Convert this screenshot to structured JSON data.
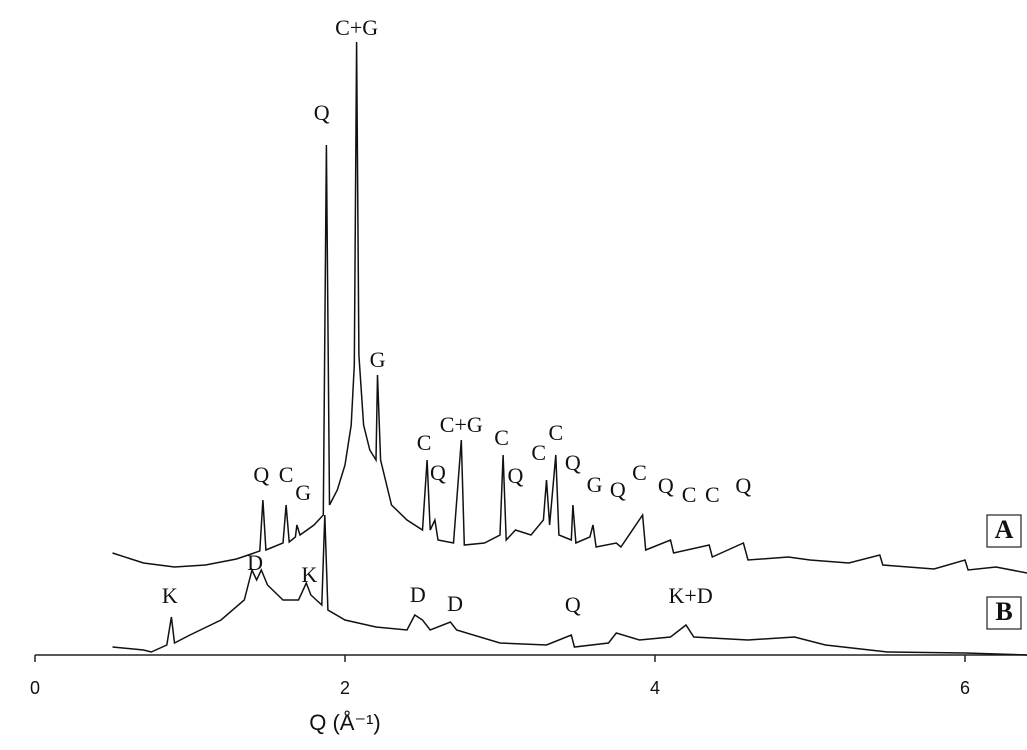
{
  "chart_data": {
    "type": "line",
    "x_label": "Q (Å⁻¹)",
    "xlim": [
      0,
      6.4
    ],
    "xticks": [
      0,
      2,
      4,
      6
    ],
    "ylim": [
      0,
      640
    ],
    "series": [
      {
        "name": "A",
        "color": "#111111",
        "x": [
          0.5,
          0.7,
          0.9,
          1.1,
          1.3,
          1.45,
          1.47,
          1.49,
          1.6,
          1.62,
          1.64,
          1.68,
          1.69,
          1.71,
          1.8,
          1.86,
          1.88,
          1.9,
          1.95,
          2.0,
          2.04,
          2.06,
          2.075,
          2.09,
          2.12,
          2.16,
          2.2,
          2.21,
          2.23,
          2.3,
          2.4,
          2.5,
          2.53,
          2.55,
          2.58,
          2.6,
          2.7,
          2.75,
          2.77,
          2.9,
          3.0,
          3.02,
          3.04,
          3.1,
          3.2,
          3.28,
          3.3,
          3.32,
          3.36,
          3.38,
          3.46,
          3.47,
          3.49,
          3.58,
          3.6,
          3.62,
          3.75,
          3.78,
          3.92,
          3.94,
          4.1,
          4.12,
          4.35,
          4.37,
          4.57,
          4.6,
          4.86,
          5.0,
          5.25,
          5.45,
          5.47,
          5.8,
          6.0,
          6.02,
          6.2,
          6.4
        ],
        "values": [
          102,
          92,
          88,
          90,
          96,
          104,
          155,
          105,
          112,
          150,
          113,
          118,
          130,
          120,
          130,
          140,
          510,
          150,
          165,
          190,
          230,
          290,
          613,
          300,
          230,
          205,
          195,
          280,
          195,
          150,
          135,
          125,
          195,
          125,
          135,
          115,
          112,
          215,
          110,
          112,
          120,
          200,
          115,
          125,
          120,
          135,
          175,
          130,
          200,
          120,
          115,
          150,
          112,
          118,
          130,
          108,
          112,
          108,
          140,
          105,
          115,
          102,
          110,
          98,
          112,
          95,
          98,
          95,
          92,
          100,
          90,
          86,
          95,
          85,
          88,
          82
        ]
      },
      {
        "name": "B",
        "color": "#111111",
        "x": [
          0.5,
          0.7,
          0.75,
          0.85,
          0.88,
          0.9,
          1.0,
          1.2,
          1.35,
          1.4,
          1.43,
          1.46,
          1.5,
          1.6,
          1.7,
          1.75,
          1.78,
          1.85,
          1.87,
          1.89,
          2.0,
          2.2,
          2.4,
          2.45,
          2.5,
          2.55,
          2.68,
          2.72,
          3.0,
          3.3,
          3.46,
          3.48,
          3.7,
          3.75,
          3.9,
          4.1,
          4.2,
          4.25,
          4.6,
          4.9,
          5.1,
          5.5,
          6.0,
          6.4
        ],
        "values": [
          8,
          5,
          3,
          10,
          38,
          12,
          20,
          35,
          55,
          85,
          75,
          85,
          70,
          55,
          55,
          72,
          60,
          50,
          140,
          45,
          35,
          28,
          25,
          40,
          35,
          25,
          33,
          25,
          12,
          10,
          20,
          8,
          12,
          22,
          15,
          18,
          30,
          18,
          15,
          18,
          10,
          3,
          2,
          0
        ]
      }
    ],
    "annotations": [
      {
        "text": "C+G",
        "x": 2.075,
        "y": 625
      },
      {
        "text": "Q",
        "x": 1.85,
        "y": 540
      },
      {
        "text": "G",
        "x": 2.21,
        "y": 293
      },
      {
        "text": "C",
        "x": 2.51,
        "y": 210
      },
      {
        "text": "C+G",
        "x": 2.75,
        "y": 228
      },
      {
        "text": "C",
        "x": 3.01,
        "y": 215
      },
      {
        "text": "Q",
        "x": 2.6,
        "y": 180
      },
      {
        "text": "Q",
        "x": 1.46,
        "y": 178
      },
      {
        "text": "C",
        "x": 1.62,
        "y": 178
      },
      {
        "text": "G",
        "x": 1.73,
        "y": 160
      },
      {
        "text": "Q",
        "x": 3.1,
        "y": 177
      },
      {
        "text": "C",
        "x": 3.25,
        "y": 200
      },
      {
        "text": "C",
        "x": 3.36,
        "y": 220
      },
      {
        "text": "Q",
        "x": 3.47,
        "y": 190
      },
      {
        "text": "G",
        "x": 3.61,
        "y": 168
      },
      {
        "text": "Q",
        "x": 3.76,
        "y": 163
      },
      {
        "text": "C",
        "x": 3.9,
        "y": 180
      },
      {
        "text": "Q",
        "x": 4.07,
        "y": 167
      },
      {
        "text": "C",
        "x": 4.22,
        "y": 158
      },
      {
        "text": "C",
        "x": 4.37,
        "y": 158
      },
      {
        "text": "Q",
        "x": 4.57,
        "y": 167
      },
      {
        "text": "K",
        "x": 0.87,
        "y": 57
      },
      {
        "text": "D",
        "x": 1.42,
        "y": 90
      },
      {
        "text": "K",
        "x": 1.77,
        "y": 78
      },
      {
        "text": "D",
        "x": 2.47,
        "y": 58
      },
      {
        "text": "D",
        "x": 2.71,
        "y": 49
      },
      {
        "text": "Q",
        "x": 3.47,
        "y": 48
      },
      {
        "text": "K+D",
        "x": 4.23,
        "y": 57
      }
    ]
  }
}
